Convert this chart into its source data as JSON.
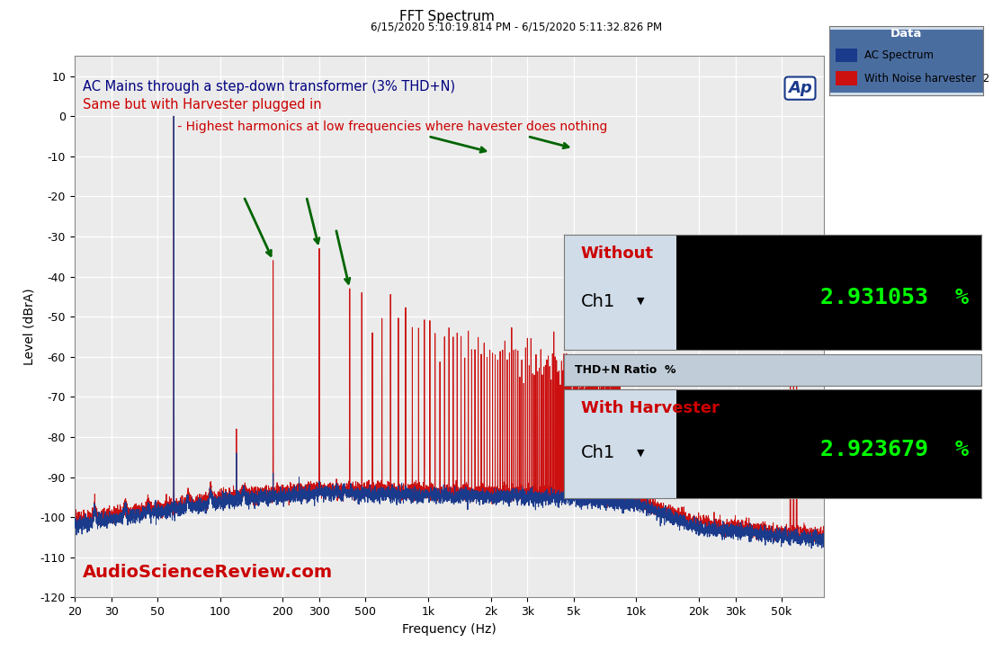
{
  "title": "FFT Spectrum",
  "subtitle": "6/15/2020 5:10:19.814 PM - 6/15/2020 5:11:32.826 PM",
  "xlabel": "Frequency (Hz)",
  "ylabel": "Level (dBrA)",
  "ylim": [
    -120,
    15
  ],
  "xlim_log": [
    20,
    80000
  ],
  "yticks": [
    10,
    0,
    -10,
    -20,
    -30,
    -40,
    -50,
    -60,
    -70,
    -80,
    -90,
    -100,
    -110,
    -120
  ],
  "xtick_labels": [
    "20",
    "30",
    "50",
    "100",
    "200",
    "300",
    "500",
    "1k",
    "2k",
    "3k",
    "5k",
    "10k",
    "20k",
    "30k",
    "50k"
  ],
  "xtick_vals": [
    20,
    30,
    50,
    100,
    200,
    300,
    500,
    1000,
    2000,
    3000,
    5000,
    10000,
    20000,
    30000,
    50000
  ],
  "bg_color": "#ffffff",
  "plot_bg_color": "#ebebeb",
  "grid_color": "#ffffff",
  "annotation_text1": "AC Mains through a step-down transformer (3% THD+N)",
  "annotation_text2": "Same but with Harvester plugged in",
  "annotation_text3": " - Highest harmonics at low frequencies where havester does nothing",
  "annotation_color1": "#000080",
  "annotation_color2": "#cc0000",
  "annotation_color3": "#cc0000",
  "legend_title": "Data",
  "legend_label1": "AC Spectrum",
  "legend_label2": "With Noise harvester  2",
  "legend_color1": "#1a3a8c",
  "legend_color2": "#cc1010",
  "watermark": "AudioScienceReview.com",
  "watermark_color": "#cc0000",
  "arrow_color": "#006400",
  "box1_label_top": "Without",
  "box1_label_bottom": "Ch1",
  "box1_value": "2.931053  %",
  "box2_title": "THD+N Ratio  %",
  "box2_label_top": "With Harvester",
  "box2_label_bottom": "Ch1",
  "box2_value": "2.923679  %",
  "ap_logo_color": "#1a3a8c",
  "box_bg": "#d0dce8",
  "box_title_bg": "#c0ccd8"
}
